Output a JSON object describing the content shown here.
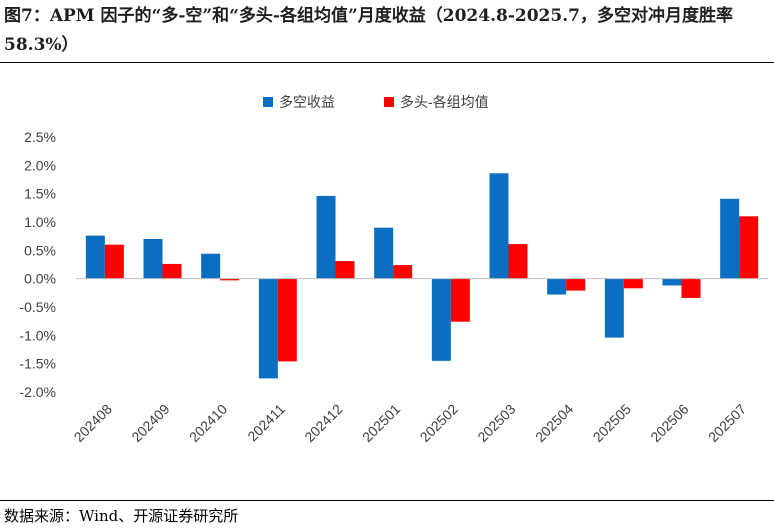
{
  "title": "图7：APM 因子的“多-空”和“多头-各组均值”月度收益（2024.8-2025.7，多空对冲月度胜率 58.3%）",
  "source": "数据来源：Wind、开源证券研究所",
  "colors": {
    "series1": "#0a6fc2",
    "series2": "#ff0000",
    "axis": "#bfbfbf",
    "text": "#404040"
  },
  "chart_data": {
    "type": "bar",
    "title": "",
    "xlabel": "",
    "ylabel": "",
    "ylim": [
      -0.02,
      0.025
    ],
    "yticks": [
      0.025,
      0.02,
      0.015,
      0.01,
      0.005,
      0.0,
      -0.005,
      -0.01,
      -0.015,
      -0.02
    ],
    "ytick_labels": [
      "2.5%",
      "2.0%",
      "1.5%",
      "1.0%",
      "0.5%",
      "0.0%",
      "-0.5%",
      "-1.0%",
      "-1.5%",
      "-2.0%"
    ],
    "categories": [
      "202408",
      "202409",
      "202410",
      "202411",
      "202412",
      "202501",
      "202502",
      "202503",
      "202504",
      "202505",
      "202506",
      "202507"
    ],
    "legend_position": "top-center",
    "series": [
      {
        "name": "多空收益",
        "color": "#0a6fc2",
        "values": [
          0.0076,
          0.007,
          0.0044,
          -0.0176,
          0.0146,
          0.009,
          -0.0145,
          0.0186,
          -0.0028,
          -0.0104,
          -0.0012,
          0.0141
        ]
      },
      {
        "name": "多头-各组均值",
        "color": "#ff0000",
        "values": [
          0.006,
          0.0026,
          -0.0003,
          -0.0146,
          0.0031,
          0.0024,
          -0.0076,
          0.0061,
          -0.0021,
          -0.0017,
          -0.0034,
          0.011
        ]
      }
    ]
  }
}
